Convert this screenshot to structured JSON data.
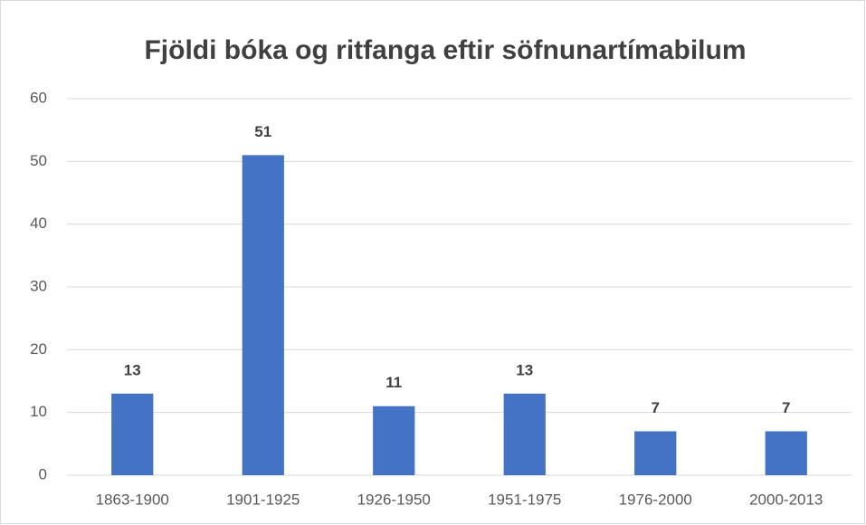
{
  "chart_data": {
    "type": "bar",
    "title": "Fjöldi bóka og ritfanga eftir söfnunartímabilum",
    "categories": [
      "1863-1900",
      "1901-1925",
      "1926-1950",
      "1951-1975",
      "1976-2000",
      "2000-2013"
    ],
    "values": [
      13,
      51,
      11,
      13,
      7,
      7
    ],
    "color": "#4472c4",
    "ylim": [
      0,
      60
    ],
    "yticks": [
      0,
      10,
      20,
      30,
      40,
      50,
      60
    ],
    "grid": true
  }
}
